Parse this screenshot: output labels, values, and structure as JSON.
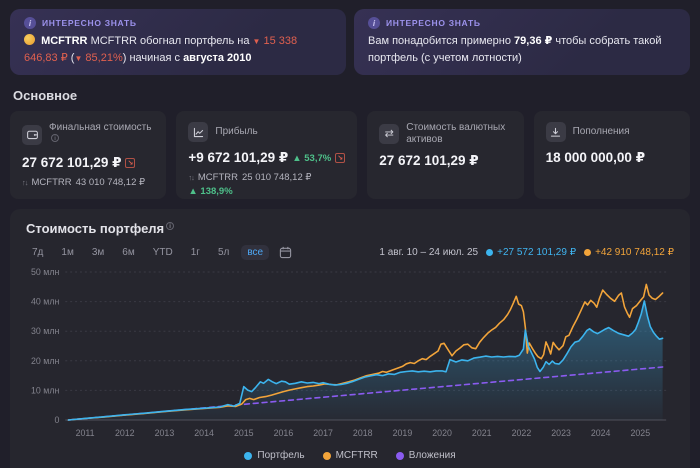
{
  "info_cards": {
    "left": {
      "badge": "ИНТЕРЕСНО ЗНАТЬ",
      "part1": "MCFTRR обогнал портфель на",
      "down1": "▼",
      "amount": "15 338 646,83 ₽",
      "paren_open": "(",
      "down2": "▼",
      "percent": "85,21%",
      "paren_close": ")",
      "part2": "начиная с",
      "bold": "августа 2010"
    },
    "right": {
      "badge": "ИНТЕРЕСНО ЗНАТЬ",
      "part1": "Вам понадобится примерно",
      "bold": "79,36 ₽",
      "part2": "чтобы собрать такой портфель (с учетом лотности)"
    }
  },
  "stats": {
    "section_title": "Основное",
    "cards": [
      {
        "label": "Финальная стоимость",
        "value": "27 672 101,29 ₽",
        "benchmark_prefix": "MCFTRR",
        "benchmark_value": "43 010 748,12 ₽"
      },
      {
        "label": "Прибыль",
        "value": "+9 672 101,29 ₽",
        "delta": "▲ 53,7%",
        "benchmark_prefix": "MCFTRR",
        "benchmark_value": "25 010 748,12 ₽",
        "benchmark_delta": "▲ 138,9%"
      },
      {
        "label": "Стоимость валютных активов",
        "value": "27 672 101,29 ₽"
      },
      {
        "label": "Пополнения",
        "value": "18 000 000,00 ₽"
      }
    ]
  },
  "chart": {
    "title": "Стоимость портфеля",
    "ranges": [
      "7д",
      "1м",
      "3м",
      "6м",
      "YTD",
      "1г",
      "5л",
      "все"
    ],
    "selected_range": "все",
    "period": "1 авг. 10 – 24 июл. 25",
    "portfolio_change": "+27 572 101,29 ₽",
    "benchmark_change": "+42 910 748,12 ₽"
  },
  "colors": {
    "accent_purple": "#9c92ec",
    "negative": "#e0604f",
    "positive": "#4ec08a",
    "portfolio_blue": "#3cb4ee",
    "benchmark_orange": "#f2a43a",
    "contributions_purple": "#8a5bf0",
    "card_bg": "#27272f",
    "page_bg": "#201f2a"
  },
  "chart_data": {
    "type": "line",
    "title": "Стоимость портфеля",
    "xlabel": "",
    "ylabel": "млн ₽",
    "x_range": [
      2010.5,
      2025.65
    ],
    "y_range": [
      0,
      50
    ],
    "grid": true,
    "legend_position": "bottom",
    "x_ticks": [
      2011,
      2012,
      2013,
      2014,
      2015,
      2016,
      2017,
      2018,
      2019,
      2020,
      2021,
      2022,
      2023,
      2024,
      2025
    ],
    "y_ticks": [
      {
        "value": 50,
        "label": "50 млн"
      },
      {
        "value": 40,
        "label": "40 млн"
      },
      {
        "value": 30,
        "label": "30 млн"
      },
      {
        "value": 20,
        "label": "20 млн"
      },
      {
        "value": 10,
        "label": "10 млн"
      },
      {
        "value": 0,
        "label": "0"
      }
    ],
    "series": [
      {
        "name": "Портфель",
        "color": "#3cb4ee",
        "dashed": false,
        "area": true,
        "points": [
          [
            2010.58,
            0
          ],
          [
            2011,
            0.55
          ],
          [
            2011.5,
            1.1
          ],
          [
            2012,
            1.75
          ],
          [
            2012.5,
            2.3
          ],
          [
            2013,
            2.95
          ],
          [
            2013.5,
            3.5
          ],
          [
            2014,
            4.0
          ],
          [
            2014.4,
            4.4
          ],
          [
            2014.6,
            5.2
          ],
          [
            2014.75,
            4.7
          ],
          [
            2014.9,
            5.6
          ],
          [
            2015.0,
            11.3
          ],
          [
            2015.1,
            10.1
          ],
          [
            2015.2,
            9.6
          ],
          [
            2015.3,
            11.0
          ],
          [
            2015.42,
            12.9
          ],
          [
            2015.5,
            12.4
          ],
          [
            2015.62,
            13.7
          ],
          [
            2015.72,
            12.9
          ],
          [
            2015.82,
            12.3
          ],
          [
            2015.95,
            13.1
          ],
          [
            2016.05,
            12.9
          ],
          [
            2016.15,
            12.1
          ],
          [
            2016.3,
            12.4
          ],
          [
            2016.45,
            12.9
          ],
          [
            2016.6,
            12.5
          ],
          [
            2016.75,
            12.7
          ],
          [
            2016.9,
            12.3
          ],
          [
            2017.0,
            12.6
          ],
          [
            2017.15,
            12.1
          ],
          [
            2017.3,
            11.8
          ],
          [
            2017.45,
            12.0
          ],
          [
            2017.6,
            12.4
          ],
          [
            2017.75,
            13.0
          ],
          [
            2017.9,
            13.8
          ],
          [
            2018.05,
            14.5
          ],
          [
            2018.2,
            14.9
          ],
          [
            2018.35,
            15.3
          ],
          [
            2018.5,
            15.0
          ],
          [
            2018.65,
            15.6
          ],
          [
            2018.8,
            15.4
          ],
          [
            2018.95,
            16.1
          ],
          [
            2019.1,
            16.4
          ],
          [
            2019.25,
            16.6
          ],
          [
            2019.4,
            16.3
          ],
          [
            2019.55,
            16.5
          ],
          [
            2019.7,
            16.3
          ],
          [
            2019.85,
            16.6
          ],
          [
            2020.0,
            16.6
          ],
          [
            2020.1,
            16.3
          ],
          [
            2020.2,
            20.4
          ],
          [
            2020.35,
            19.6
          ],
          [
            2020.5,
            20.3
          ],
          [
            2020.65,
            20.0
          ],
          [
            2020.8,
            20.9
          ],
          [
            2020.95,
            21.2
          ],
          [
            2021.1,
            21.6
          ],
          [
            2021.25,
            21.3
          ],
          [
            2021.4,
            21.5
          ],
          [
            2021.55,
            21.3
          ],
          [
            2021.7,
            21.5
          ],
          [
            2021.85,
            21.4
          ],
          [
            2021.95,
            21.9
          ],
          [
            2022.05,
            24.0
          ],
          [
            2022.1,
            30.4
          ],
          [
            2022.18,
            24.8
          ],
          [
            2022.25,
            22.8
          ],
          [
            2022.33,
            20.6
          ],
          [
            2022.4,
            17.8
          ],
          [
            2022.47,
            16.4
          ],
          [
            2022.55,
            17.8
          ],
          [
            2022.62,
            19.7
          ],
          [
            2022.7,
            18.8
          ],
          [
            2022.78,
            19.9
          ],
          [
            2022.85,
            19.1
          ],
          [
            2022.95,
            18.9
          ],
          [
            2023.05,
            20.3
          ],
          [
            2023.15,
            22.4
          ],
          [
            2023.25,
            24.7
          ],
          [
            2023.35,
            26.3
          ],
          [
            2023.45,
            26.7
          ],
          [
            2023.55,
            28.3
          ],
          [
            2023.65,
            30.2
          ],
          [
            2023.72,
            30.8
          ],
          [
            2023.82,
            29.8
          ],
          [
            2023.92,
            29.2
          ],
          [
            2024.0,
            29.8
          ],
          [
            2024.1,
            30.6
          ],
          [
            2024.2,
            31.2
          ],
          [
            2024.32,
            30.2
          ],
          [
            2024.45,
            29.3
          ],
          [
            2024.58,
            28.8
          ],
          [
            2024.7,
            28.3
          ],
          [
            2024.8,
            29.4
          ],
          [
            2024.88,
            30.6
          ],
          [
            2024.95,
            33.0
          ],
          [
            2025.02,
            35.8
          ],
          [
            2025.1,
            40.2
          ],
          [
            2025.18,
            35.0
          ],
          [
            2025.25,
            31.6
          ],
          [
            2025.33,
            29.6
          ],
          [
            2025.4,
            28.4
          ],
          [
            2025.48,
            27.3
          ],
          [
            2025.56,
            27.6
          ]
        ]
      },
      {
        "name": "MCFTRR",
        "color": "#f2a43a",
        "dashed": false,
        "area": false,
        "points": [
          [
            2010.58,
            0
          ],
          [
            2011,
            0.5
          ],
          [
            2011.5,
            1.05
          ],
          [
            2012,
            1.65
          ],
          [
            2012.5,
            2.2
          ],
          [
            2013,
            2.85
          ],
          [
            2013.5,
            3.4
          ],
          [
            2014,
            3.9
          ],
          [
            2014.4,
            4.3
          ],
          [
            2014.6,
            4.8
          ],
          [
            2014.8,
            4.6
          ],
          [
            2014.95,
            5.4
          ],
          [
            2015.05,
            6.9
          ],
          [
            2015.15,
            7.3
          ],
          [
            2015.25,
            6.9
          ],
          [
            2015.4,
            7.6
          ],
          [
            2015.55,
            7.9
          ],
          [
            2015.7,
            8.4
          ],
          [
            2015.85,
            9.0
          ],
          [
            2016.0,
            9.6
          ],
          [
            2016.15,
            10.1
          ],
          [
            2016.3,
            10.5
          ],
          [
            2016.45,
            10.9
          ],
          [
            2016.6,
            11.3
          ],
          [
            2016.75,
            11.5
          ],
          [
            2016.9,
            11.8
          ],
          [
            2017.05,
            12.2
          ],
          [
            2017.2,
            12.0
          ],
          [
            2017.35,
            11.9
          ],
          [
            2017.5,
            12.4
          ],
          [
            2017.65,
            12.9
          ],
          [
            2017.8,
            13.5
          ],
          [
            2017.95,
            14.3
          ],
          [
            2018.1,
            15.0
          ],
          [
            2018.25,
            15.4
          ],
          [
            2018.4,
            15.8
          ],
          [
            2018.5,
            16.4
          ],
          [
            2018.6,
            16.1
          ],
          [
            2018.75,
            16.9
          ],
          [
            2018.9,
            17.6
          ],
          [
            2019.0,
            18.1
          ],
          [
            2019.1,
            19.0
          ],
          [
            2019.2,
            19.4
          ],
          [
            2019.3,
            19.1
          ],
          [
            2019.4,
            20.0
          ],
          [
            2019.5,
            20.7
          ],
          [
            2019.6,
            20.4
          ],
          [
            2019.7,
            21.5
          ],
          [
            2019.8,
            22.4
          ],
          [
            2019.9,
            23.3
          ],
          [
            2019.97,
            25.6
          ],
          [
            2020.05,
            25.9
          ],
          [
            2020.15,
            23.8
          ],
          [
            2020.25,
            21.7
          ],
          [
            2020.35,
            23.3
          ],
          [
            2020.45,
            24.3
          ],
          [
            2020.55,
            25.4
          ],
          [
            2020.65,
            25.6
          ],
          [
            2020.75,
            24.4
          ],
          [
            2020.85,
            24.1
          ],
          [
            2020.95,
            26.3
          ],
          [
            2021.05,
            27.9
          ],
          [
            2021.15,
            29.3
          ],
          [
            2021.25,
            30.4
          ],
          [
            2021.35,
            31.3
          ],
          [
            2021.45,
            32.7
          ],
          [
            2021.55,
            33.9
          ],
          [
            2021.65,
            35.6
          ],
          [
            2021.72,
            37.2
          ],
          [
            2021.8,
            39.6
          ],
          [
            2021.87,
            41.8
          ],
          [
            2021.93,
            39.2
          ],
          [
            2022.0,
            38.6
          ],
          [
            2022.05,
            36.6
          ],
          [
            2022.1,
            31.2
          ],
          [
            2022.15,
            22.6
          ],
          [
            2022.2,
            26.0
          ],
          [
            2022.28,
            24.1
          ],
          [
            2022.35,
            22.6
          ],
          [
            2022.42,
            21.4
          ],
          [
            2022.5,
            20.7
          ],
          [
            2022.56,
            22.1
          ],
          [
            2022.62,
            26.4
          ],
          [
            2022.68,
            24.6
          ],
          [
            2022.74,
            22.3
          ],
          [
            2022.8,
            26.2
          ],
          [
            2022.87,
            24.9
          ],
          [
            2022.95,
            23.7
          ],
          [
            2023.05,
            25.1
          ],
          [
            2023.12,
            28.1
          ],
          [
            2023.2,
            28.6
          ],
          [
            2023.3,
            31.6
          ],
          [
            2023.4,
            34.1
          ],
          [
            2023.5,
            36.9
          ],
          [
            2023.6,
            39.9
          ],
          [
            2023.67,
            38.9
          ],
          [
            2023.75,
            40.4
          ],
          [
            2023.83,
            39.5
          ],
          [
            2023.9,
            38.1
          ],
          [
            2023.97,
            41.1
          ],
          [
            2024.05,
            43.9
          ],
          [
            2024.15,
            42.4
          ],
          [
            2024.25,
            41.1
          ],
          [
            2024.35,
            40.1
          ],
          [
            2024.45,
            42.1
          ],
          [
            2024.52,
            42.9
          ],
          [
            2024.6,
            38.2
          ],
          [
            2024.67,
            36.1
          ],
          [
            2024.73,
            34.7
          ],
          [
            2024.8,
            37.6
          ],
          [
            2024.9,
            38.6
          ],
          [
            2025.0,
            40.3
          ],
          [
            2025.08,
            41.6
          ],
          [
            2025.15,
            45.8
          ],
          [
            2025.22,
            42.2
          ],
          [
            2025.3,
            41.1
          ],
          [
            2025.38,
            40.7
          ],
          [
            2025.46,
            41.6
          ],
          [
            2025.56,
            42.9
          ]
        ]
      },
      {
        "name": "Вложения",
        "color": "#8a5bf0",
        "dashed": true,
        "area": false,
        "points": [
          [
            2010.58,
            0
          ],
          [
            2018,
            8.9
          ],
          [
            2025.56,
            17.9
          ]
        ]
      }
    ]
  }
}
